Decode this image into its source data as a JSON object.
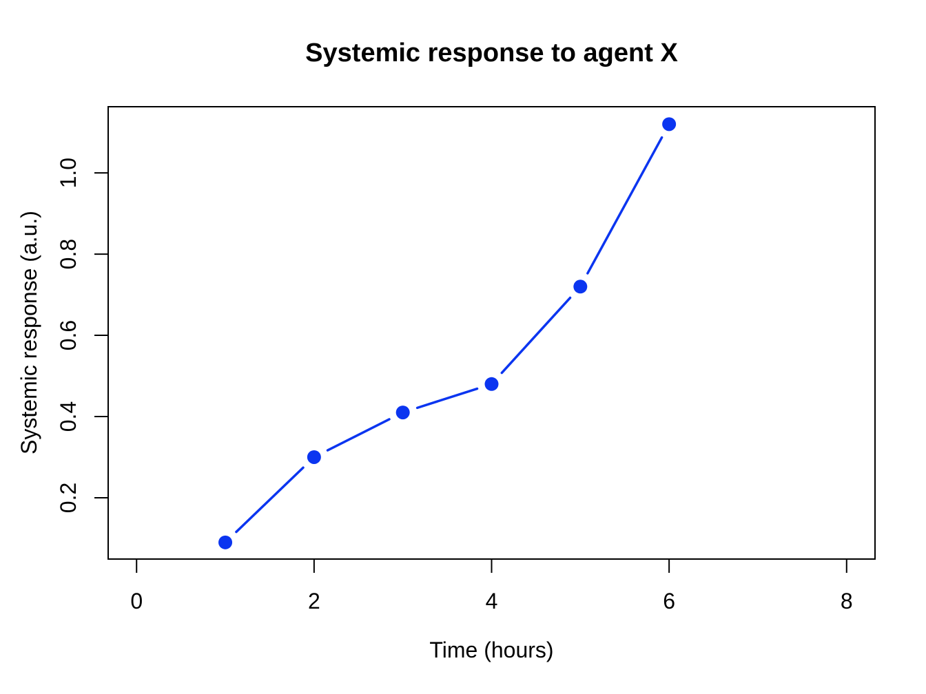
{
  "page": {
    "background_color": "#ffffff",
    "text_color": "#000000",
    "axis_color": "#000000"
  },
  "chart_data": {
    "type": "line",
    "title": "Systemic response to agent X",
    "xlabel": "Time (hours)",
    "ylabel": "Systemic response (a.u.)",
    "x": [
      1,
      2,
      3,
      4,
      5,
      6
    ],
    "y": [
      0.09,
      0.3,
      0.41,
      0.48,
      0.72,
      1.12
    ],
    "series_color": "#0b35f0",
    "marker": "filled-circle",
    "connector": "segments-with-gaps",
    "x_tick_values": [
      0,
      2,
      4,
      6,
      8
    ],
    "x_tick_labels": [
      "0",
      "2",
      "4",
      "6",
      "8"
    ],
    "y_tick_values": [
      0.2,
      0.4,
      0.6,
      0.8,
      1.0
    ],
    "y_tick_labels": [
      "0.2",
      "0.4",
      "0.6",
      "0.8",
      "1.0"
    ],
    "xlim": [
      -0.32,
      8.32
    ],
    "ylim": [
      0.049,
      1.163
    ],
    "grid": false,
    "legend_position": "none"
  }
}
